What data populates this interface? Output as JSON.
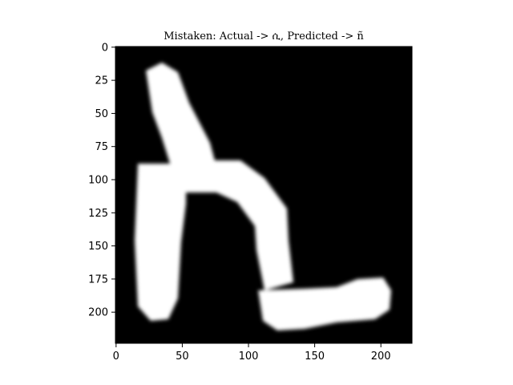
{
  "figure": {
    "title": "Mistaken: Actual -> ሲ, Predicted -> ñ"
  },
  "chart_data": {
    "type": "image",
    "title": "Mistaken: Actual -> ሲ, Predicted -> ñ",
    "xlabel": "",
    "ylabel": "",
    "xlim": [
      -0.5,
      223.5
    ],
    "ylim": [
      223.5,
      -0.5
    ],
    "xticks": [
      0,
      50,
      100,
      150,
      200
    ],
    "yticks": [
      0,
      25,
      50,
      75,
      100,
      125,
      150,
      175,
      200
    ],
    "grid": false,
    "background_color": "#000000",
    "glyph_color": "#ffffff",
    "colormap": "gray"
  }
}
